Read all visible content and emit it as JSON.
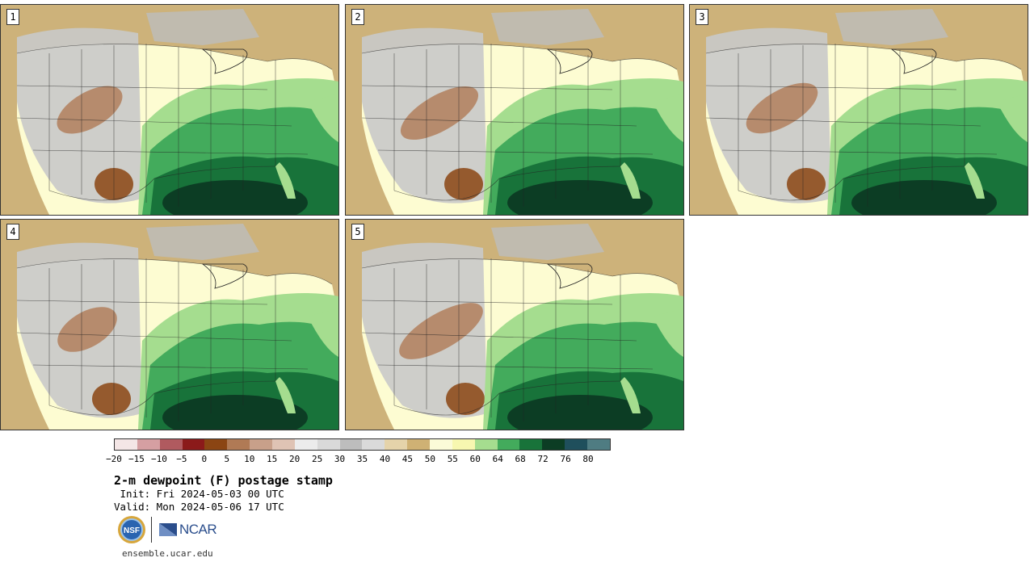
{
  "page": {
    "title": "2-m dewpoint (F) postage stamp",
    "init": " Init: Fri 2024-05-03 00 UTC",
    "valid": "Valid: Mon 2024-05-06 17 UTC",
    "site": "ensemble.ucar.edu",
    "ncar_logo_text": "NCAR",
    "nsf_logo_text": "NSF"
  },
  "members": [
    {
      "label": "1"
    },
    {
      "label": "2"
    },
    {
      "label": "3"
    },
    {
      "label": "4"
    },
    {
      "label": "5"
    }
  ],
  "colorbar": {
    "colors": [
      "#f4e6e6",
      "#d59fa2",
      "#b05a5f",
      "#8b1a1a",
      "#8b4513",
      "#b07a55",
      "#c8a08a",
      "#dfc3b4",
      "#ececec",
      "#d9d9d9",
      "#bdbdbd",
      "#dadada",
      "#e5d3aa",
      "#cfb174",
      "#fbfbd8",
      "#f7f7b0",
      "#a5dd8f",
      "#43ab5c",
      "#18733a",
      "#0c3d24",
      "#1f4f5c",
      "#4f7c82"
    ],
    "tick_labels": [
      "−20",
      "−15",
      "−10",
      "−5",
      "0",
      "5",
      "10",
      "15",
      "20",
      "25",
      "30",
      "35",
      "40",
      "45",
      "50",
      "55",
      "60",
      "64",
      "68",
      "72",
      "76",
      "80"
    ]
  },
  "map_palette": {
    "ocean_dry": "#cdb27a",
    "land_moist": "#fdfcd2",
    "mountain_gray": "#c9c9c9",
    "dry_brown": "#b07a55",
    "dark_brown": "#8b4513",
    "green_light": "#a5dd8f",
    "green_mid": "#43ab5c",
    "green_dark": "#18733a",
    "green_darkest": "#0c3d24",
    "border": "#222222"
  }
}
